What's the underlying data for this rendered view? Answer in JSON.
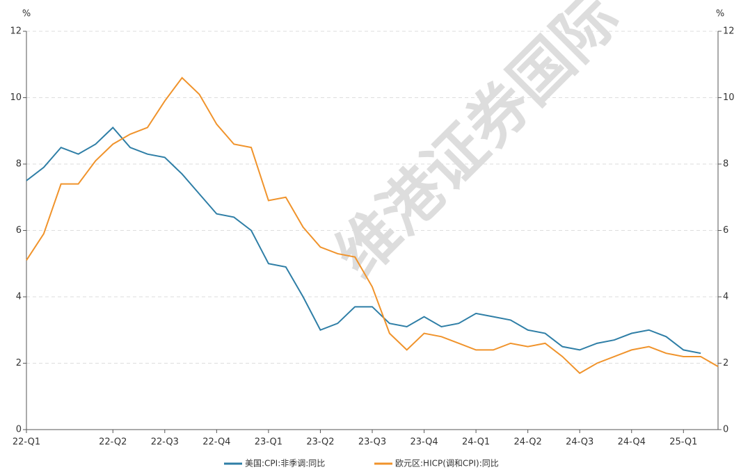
{
  "chart_data": {
    "type": "line",
    "watermark": "维港证券国际",
    "y_unit": "%",
    "y2_unit": "%",
    "categories": [
      "22-Q1",
      null,
      null,
      null,
      null,
      "22-Q2",
      null,
      null,
      "22-Q3",
      null,
      null,
      "22-Q4",
      null,
      null,
      "23-Q1",
      null,
      null,
      "23-Q2",
      null,
      null,
      "23-Q3",
      null,
      null,
      "23-Q4",
      null,
      null,
      "24-Q1",
      null,
      null,
      "24-Q2",
      null,
      null,
      "24-Q3",
      null,
      null,
      "24-Q4",
      null,
      null,
      "25-Q1",
      null,
      null
    ],
    "series": [
      {
        "name": "美国:CPI:非季调:同比",
        "color": "#2e7ea6",
        "values": [
          7.5,
          7.9,
          8.5,
          8.3,
          8.6,
          9.1,
          8.5,
          8.3,
          8.2,
          7.7,
          7.1,
          6.5,
          6.4,
          6.0,
          5.0,
          4.9,
          4.0,
          3.0,
          3.2,
          3.7,
          3.7,
          3.2,
          3.1,
          3.4,
          3.1,
          3.2,
          3.5,
          3.4,
          3.3,
          3.0,
          2.9,
          2.5,
          2.4,
          2.6,
          2.7,
          2.9,
          3.0,
          2.8,
          2.4,
          2.3,
          null
        ]
      },
      {
        "name": "欧元区:HICP(调和CPI):同比",
        "color": "#f0932b",
        "axis": "y2",
        "values": [
          5.1,
          5.9,
          7.4,
          7.4,
          8.1,
          8.6,
          8.9,
          9.1,
          9.9,
          10.6,
          10.1,
          9.2,
          8.6,
          8.5,
          6.9,
          7.0,
          6.1,
          5.5,
          5.3,
          5.2,
          4.3,
          2.9,
          2.4,
          2.9,
          2.8,
          2.6,
          2.4,
          2.4,
          2.6,
          2.5,
          2.6,
          2.2,
          1.7,
          2.0,
          2.2,
          2.4,
          2.5,
          2.3,
          2.2,
          2.2,
          1.9
        ]
      }
    ],
    "ylim": [
      0,
      12
    ],
    "yticks": [
      0,
      2,
      4,
      6,
      8,
      10,
      12
    ],
    "y2lim": [
      0,
      12
    ],
    "y2ticks": [
      0,
      2,
      4,
      6,
      8,
      10,
      12
    ],
    "grid": true,
    "legend": "bottom"
  }
}
